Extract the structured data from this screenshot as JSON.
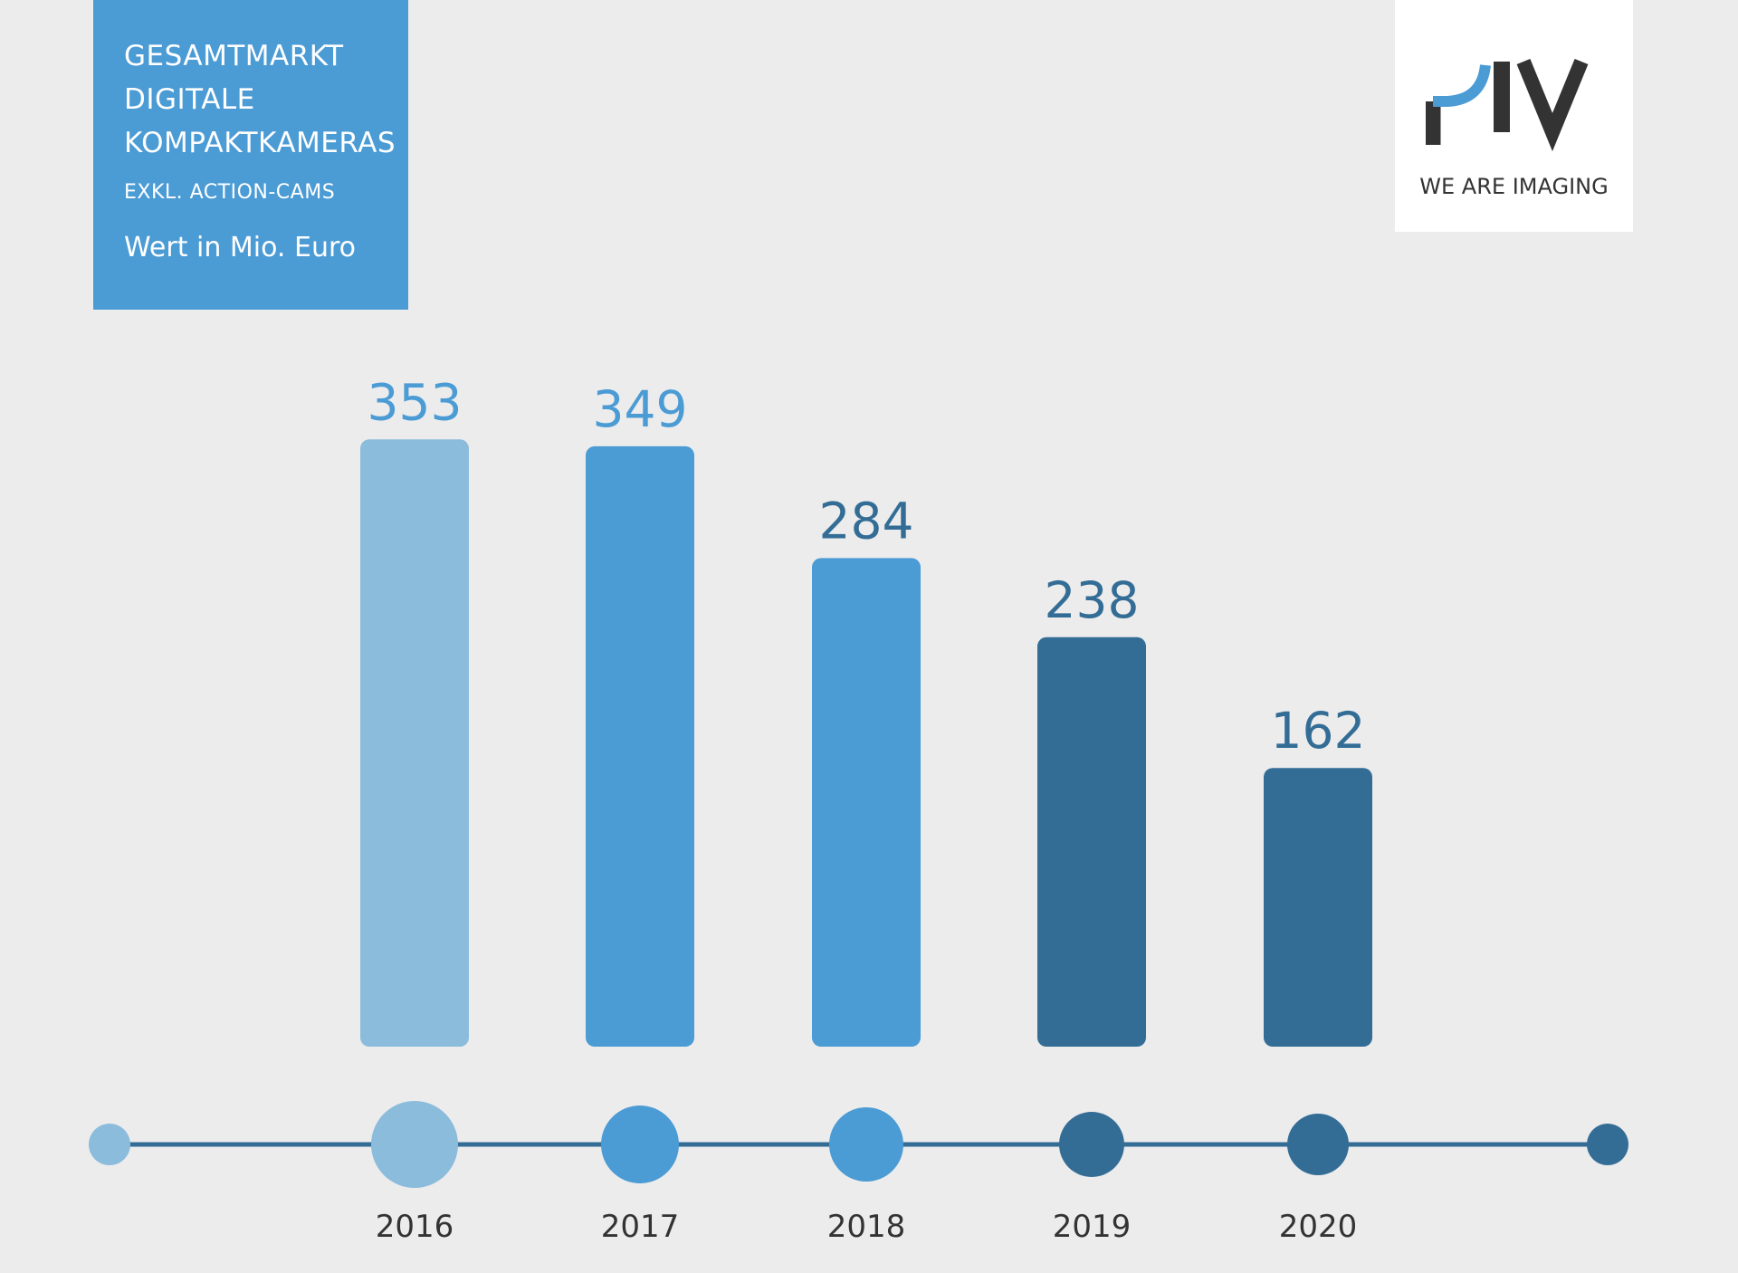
{
  "header": {
    "title_lines": [
      "GESAMTMARKT",
      "DIGITALE",
      "KOMPAKTKAMERAS"
    ],
    "subtitle": "EXKL. ACTION-CAMS",
    "unit": "Wert in Mio. Euro"
  },
  "logo": {
    "mark": "PIV",
    "tagline": "WE ARE IMAGING"
  },
  "colors": {
    "background": "#ececec",
    "title_box": "#4b9bd5",
    "light_blue": "#8bbcdc",
    "mid_blue": "#4b9bd5",
    "dark_blue": "#336d96",
    "timeline": "#336d96"
  },
  "chart_data": {
    "type": "bar",
    "categories": [
      "2016",
      "2017",
      "2018",
      "2019",
      "2020"
    ],
    "values": [
      353,
      349,
      284,
      238,
      162
    ],
    "bar_colors": [
      "#8bbcdc",
      "#4b9bd5",
      "#4b9bd5",
      "#336d96",
      "#336d96"
    ],
    "label_colors": [
      "#4b9bd5",
      "#4b9bd5",
      "#336d96",
      "#336d96",
      "#336d96"
    ],
    "title": "GESAMTMARKT DIGITALE KOMPAKTKAMERAS",
    "subtitle": "EXKL. ACTION-CAMS",
    "ylabel": "Wert in Mio. Euro",
    "xlabel": "",
    "grid": false,
    "legend": "none"
  }
}
